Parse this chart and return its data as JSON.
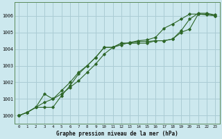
{
  "xlabel": "Graphe pression niveau de la mer (hPa)",
  "bg_color": "#cce8ee",
  "grid_color": "#aaccd4",
  "line_color": "#2d6628",
  "xlim": [
    -0.5,
    23.5
  ],
  "ylim": [
    999.5,
    1006.8
  ],
  "yticks": [
    1000,
    1001,
    1002,
    1003,
    1004,
    1005,
    1006
  ],
  "xticks": [
    0,
    1,
    2,
    3,
    4,
    5,
    6,
    7,
    8,
    9,
    10,
    11,
    12,
    13,
    14,
    15,
    16,
    17,
    18,
    19,
    20,
    21,
    22,
    23
  ],
  "series": [
    [
      1000.0,
      1000.2,
      1000.5,
      1001.3,
      1001.0,
      1001.5,
      1002.0,
      1002.6,
      1003.0,
      1003.5,
      1004.1,
      1004.1,
      1004.35,
      1004.35,
      1004.45,
      1004.45,
      1004.5,
      1004.5,
      1004.6,
      1005.1,
      1005.8,
      1006.15,
      1006.15,
      1006.05
    ],
    [
      1000.0,
      1000.2,
      1000.5,
      1000.5,
      1000.5,
      1001.2,
      1001.8,
      1002.5,
      1003.0,
      1003.5,
      1004.1,
      1004.1,
      1004.35,
      1004.35,
      1004.35,
      1004.35,
      1004.5,
      1004.5,
      1004.6,
      1005.0,
      1005.2,
      1006.1,
      1006.1,
      1006.0
    ],
    [
      1000.0,
      1000.2,
      1000.5,
      1000.8,
      1001.0,
      1001.3,
      1001.7,
      1002.1,
      1002.6,
      1003.1,
      1003.7,
      1004.1,
      1004.25,
      1004.4,
      1004.5,
      1004.55,
      1004.7,
      1005.25,
      1005.5,
      1005.8,
      1006.1,
      1006.1,
      1006.05,
      1006.0
    ]
  ]
}
